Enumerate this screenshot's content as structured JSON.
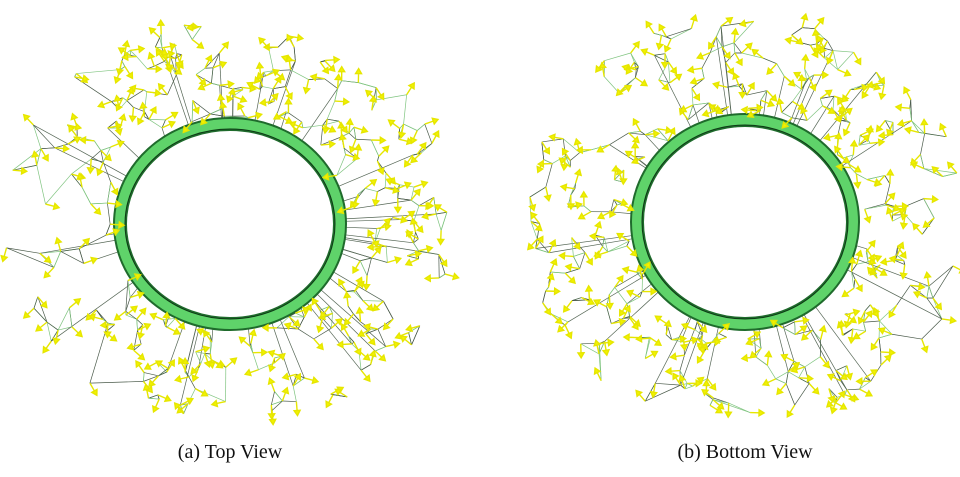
{
  "figure": {
    "subfigures": [
      {
        "caption": "(a) Top View"
      },
      {
        "caption": "(b) Bottom View"
      }
    ]
  }
}
